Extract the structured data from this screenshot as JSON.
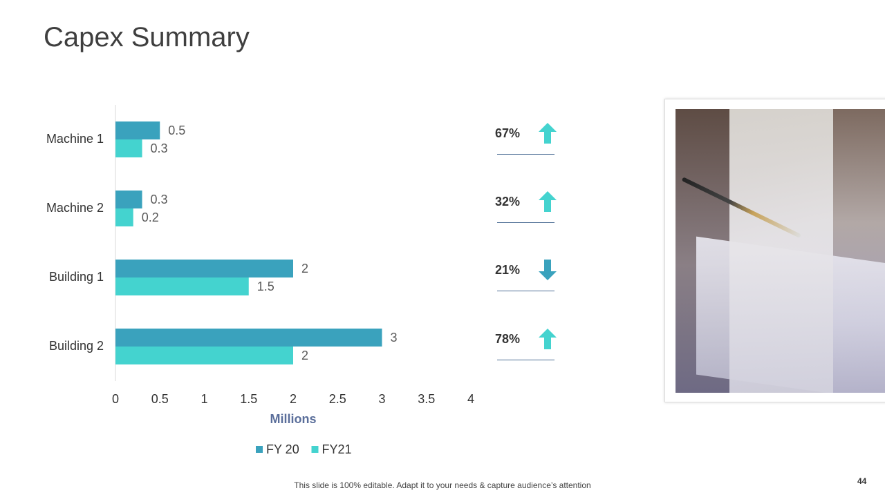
{
  "title": "Capex Summary",
  "chart_data": {
    "type": "bar",
    "orientation": "horizontal",
    "categories": [
      "Machine 1",
      "Machine 2",
      "Building 1",
      "Building 2"
    ],
    "series": [
      {
        "name": "FY 20",
        "values": [
          0.5,
          0.3,
          2,
          3
        ],
        "color": "#3aa2bd"
      },
      {
        "name": "FY21",
        "values": [
          0.3,
          0.2,
          1.5,
          2
        ],
        "color": "#44d3cf"
      }
    ],
    "xlabel": "Millions",
    "xlim": [
      0,
      4
    ],
    "xticks": [
      "0",
      "0.5",
      "1",
      "1.5",
      "2",
      "2.5",
      "3",
      "3.5",
      "4"
    ],
    "legend_position": "bottom",
    "grid": false
  },
  "kpis": [
    {
      "value": "67%",
      "direction": "up",
      "icon": "arrow-up-icon",
      "color": "#44d3cf"
    },
    {
      "value": "32%",
      "direction": "up",
      "icon": "arrow-up-icon",
      "color": "#44d3cf"
    },
    {
      "value": "21%",
      "direction": "down",
      "icon": "arrow-down-icon",
      "color": "#3aa2bd"
    },
    {
      "value": "78%",
      "direction": "up",
      "icon": "arrow-up-icon",
      "color": "#44d3cf"
    }
  ],
  "footer": "This slide is 100% editable. Adapt it to your needs & capture audience’s attention",
  "page_number": "44",
  "colors": {
    "xlabel": "#5a6e9a",
    "divider": "#4a6c93"
  }
}
